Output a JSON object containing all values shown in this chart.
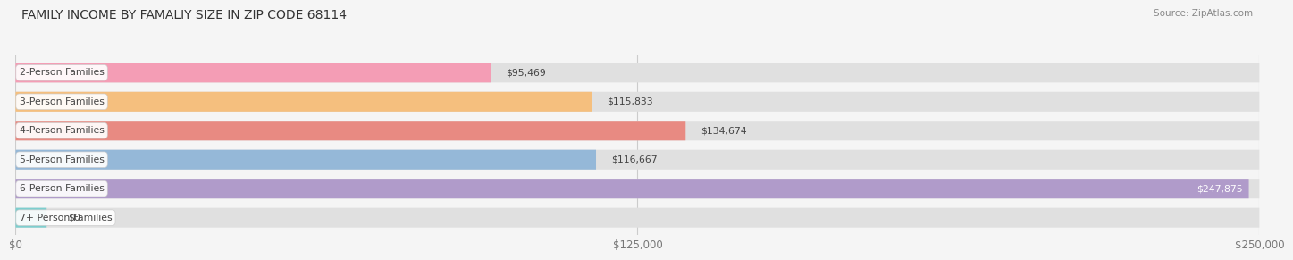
{
  "title": "FAMILY INCOME BY FAMALIY SIZE IN ZIP CODE 68114",
  "source": "Source: ZipAtlas.com",
  "categories": [
    "2-Person Families",
    "3-Person Families",
    "4-Person Families",
    "5-Person Families",
    "6-Person Families",
    "7+ Person Families"
  ],
  "values": [
    95469,
    115833,
    134674,
    116667,
    247875,
    0
  ],
  "labels": [
    "$95,469",
    "$115,833",
    "$134,674",
    "$116,667",
    "$247,875",
    "$0"
  ],
  "bar_colors": [
    "#f49db5",
    "#f5bf7e",
    "#e88a82",
    "#95b8d8",
    "#b09bca",
    "#7dcece"
  ],
  "xlim": [
    0,
    250000
  ],
  "xticklabels": [
    "$0",
    "$125,000",
    "$250,000"
  ],
  "background_color": "#f5f5f5",
  "bar_bg_color": "#e8e8e8",
  "title_fontsize": 10,
  "tick_fontsize": 8.5,
  "bar_height": 0.68
}
